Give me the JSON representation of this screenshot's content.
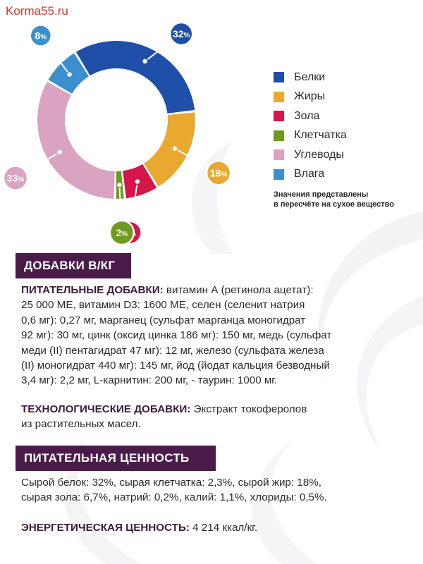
{
  "watermark": "Korma55.ru",
  "chart_data": {
    "type": "pie",
    "title": "",
    "categories": [
      "Белки",
      "Жиры",
      "Зола",
      "Клетчатка",
      "Углеводы",
      "Влага"
    ],
    "values": [
      32,
      18,
      7,
      2,
      33,
      8
    ],
    "value_labels": [
      "32",
      "18",
      "7",
      "2",
      "33",
      "8"
    ],
    "label_unit": "%",
    "colors": [
      "#1f4fa8",
      "#e9a931",
      "#d6154a",
      "#6f9a1f",
      "#d9a3c1",
      "#3b8fce"
    ],
    "donut": true,
    "legend_position": "right",
    "note": "Значения представлены в пересчёте на сухое вещество",
    "note_lines": [
      "Значения представлены",
      "в пересчёте на сухое вещество"
    ]
  },
  "sections": {
    "additives": {
      "header": "ДОБАВКИ В/КГ",
      "nutritional_label": "ПИТАТЕЛЬНЫЕ ДОБАВКИ:",
      "nutritional_lines": [
        " витамин А (ретинола ацетат):",
        "25 000 МЕ, витамин D3: 1600 МЕ, селен (селенит натрия",
        "0,6 мг): 0,27 мг, марганец (сульфат марганца моногидрат",
        "92 мг): 30 мг, цинк (оксид цинка 186 мг): 150 мг, медь (сульфат",
        "меди (II) пентагидрат 47 мг): 12 мг, железо (сульфата железа",
        "(II) моногидрат 440 мг): 145 мг, йод (йодат кальция безводный",
        "3,4 мг): 2,2 мг, L-карнитин: 200 мг, - таурин: 1000 мг."
      ],
      "technological_label": "ТЕХНОЛОГИЧЕСКИЕ ДОБАВКИ:",
      "technological_lines": [
        " Экстракт токоферолов",
        "из растительных масел."
      ]
    },
    "nutrition": {
      "header": "ПИТАТЕЛЬНАЯ ЦЕННОСТЬ",
      "lines": [
        "Сырой белок: 32%, сырая клетчатка: 2,3%, сырой жир: 18%,",
        "сырая зола: 6,7%, натрий: 0,2%, калий: 1,1%, хлориды: 0,5%."
      ],
      "energy_label": "ЭНЕРГЕТИЧЕСКАЯ ЦЕННОСТЬ:",
      "energy_value": " 4 214 ккал/кг."
    }
  }
}
